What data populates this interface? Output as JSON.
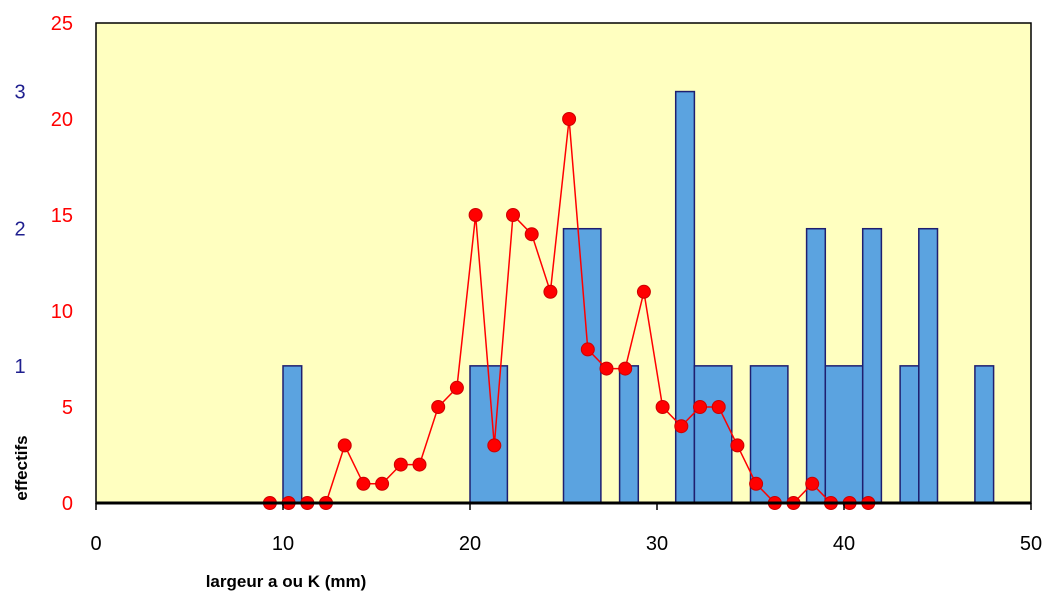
{
  "chart_data": {
    "type": "bar",
    "xlabel": "largeur a ou K (mm)",
    "ylabel": "effectifs",
    "xlim": [
      0,
      50
    ],
    "x_ticks": [
      "0",
      "10",
      "20",
      "30",
      "40",
      "50"
    ],
    "colors": {
      "plot_background": "#ffffc0",
      "histogram_fill": "#5ba3e0",
      "histogram_edge": "#1f1f6f",
      "curve": "#ff0000",
      "marker_edge": "#cc0000",
      "left_axis_ticks": "#ff0000",
      "secondary_axis_ticks": "#1f1f8f"
    },
    "left_axis": {
      "ylim": [
        0,
        25
      ],
      "ticks": [
        "0",
        "5",
        "10",
        "15",
        "20",
        "25"
      ]
    },
    "secondary_axis": {
      "ylim": [
        0,
        3.5
      ],
      "ticks": [
        "1",
        "2",
        "3"
      ],
      "tick_values": [
        1,
        2,
        3
      ]
    },
    "histogram": {
      "axis": "secondary",
      "bins": [
        {
          "x0": 10,
          "x1": 11,
          "value": 1
        },
        {
          "x0": 20,
          "x1": 22,
          "value": 1
        },
        {
          "x0": 25,
          "x1": 27,
          "value": 2
        },
        {
          "x0": 28,
          "x1": 29,
          "value": 1
        },
        {
          "x0": 31,
          "x1": 32,
          "value": 3
        },
        {
          "x0": 32,
          "x1": 34,
          "value": 1
        },
        {
          "x0": 35,
          "x1": 37,
          "value": 1
        },
        {
          "x0": 38,
          "x1": 39,
          "value": 2
        },
        {
          "x0": 39,
          "x1": 41,
          "value": 1
        },
        {
          "x0": 41,
          "x1": 42,
          "value": 2
        },
        {
          "x0": 43,
          "x1": 44,
          "value": 1
        },
        {
          "x0": 44,
          "x1": 45,
          "value": 2
        },
        {
          "x0": 47,
          "x1": 48,
          "value": 1
        }
      ]
    },
    "series": [
      {
        "type": "line",
        "axis": "left",
        "x": [
          9.3,
          10.3,
          11.3,
          12.3,
          13.3,
          14.3,
          15.3,
          16.3,
          17.3,
          18.3,
          19.3,
          20.3,
          21.3,
          22.3,
          23.3,
          24.3,
          25.3,
          26.3,
          27.3,
          28.3,
          29.3,
          30.3,
          31.3,
          32.3,
          33.3,
          34.3,
          35.3,
          36.3,
          37.3,
          38.3,
          39.3,
          40.3,
          41.3
        ],
        "values": [
          0,
          0,
          0,
          0,
          3,
          1,
          1,
          2,
          2,
          5,
          6,
          15,
          3,
          15,
          14,
          11,
          20,
          8,
          7,
          7,
          11,
          5,
          4,
          5,
          5,
          3,
          1,
          0,
          0,
          1,
          0,
          0,
          0
        ]
      }
    ]
  }
}
